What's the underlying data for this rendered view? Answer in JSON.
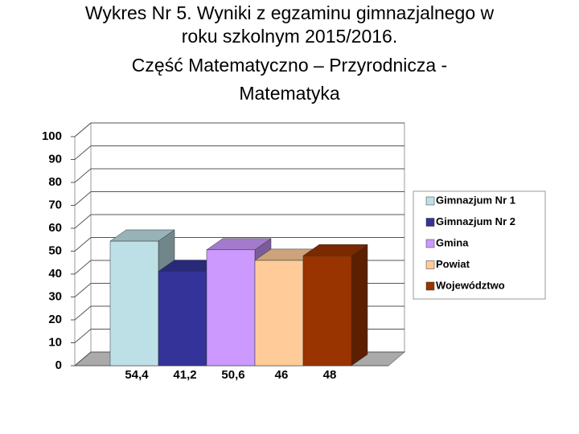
{
  "chart_data": {
    "type": "bar3d",
    "title": [
      "Wykres Nr 5. Wyniki z egzaminu gimnazjalnego   w",
      "roku szkolnym 2015/2016.",
      "Część Matematyczno – Przyrodnicza -",
      "Matematyka"
    ],
    "series": [
      {
        "name": "Gimnazjum Nr 1",
        "color": "#bde0e6",
        "values": [
          54.4
        ],
        "value_labels": [
          "54,4"
        ]
      },
      {
        "name": "Gimnazjum Nr 2",
        "color": "#333399",
        "values": [
          41.2
        ],
        "value_labels": [
          "41,2"
        ]
      },
      {
        "name": "Gmina",
        "color": "#cc99ff",
        "values": [
          50.6
        ],
        "value_labels": [
          "50,6"
        ]
      },
      {
        "name": "Powiat",
        "color": "#ffcc99",
        "values": [
          46
        ],
        "value_labels": [
          "46"
        ]
      },
      {
        "name": "Województwo",
        "color": "#993300",
        "values": [
          48
        ],
        "value_labels": [
          "48"
        ]
      }
    ],
    "ylim": [
      0,
      100
    ],
    "yticks": [
      0,
      10,
      20,
      30,
      40,
      50,
      60,
      70,
      80,
      90,
      100
    ],
    "grid": true,
    "legend": "right"
  }
}
